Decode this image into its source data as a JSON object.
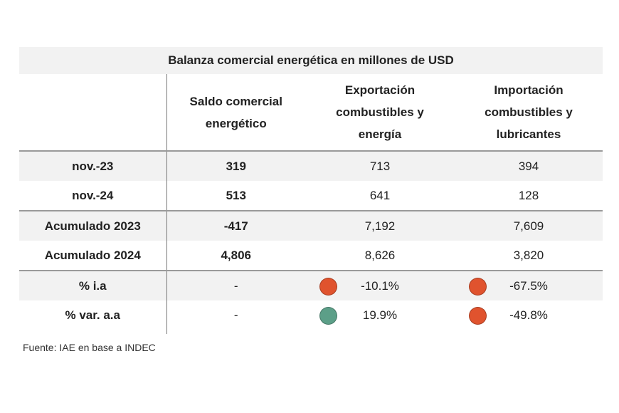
{
  "title": "Balanza comercial energética en millones de USD",
  "columns": [
    "",
    "Saldo comercial energético",
    "Exportación combustibles y energía",
    "Importación combustibles y lubricantes"
  ],
  "column_lines": [
    [],
    [
      "Saldo comercial",
      "energético"
    ],
    [
      "Exportación",
      "combustibles y",
      "energía"
    ],
    [
      "Importación",
      "combustibles y",
      "lubricantes"
    ]
  ],
  "rows": [
    {
      "label": "nov.-23",
      "saldo": "319",
      "export": "713",
      "import": "394"
    },
    {
      "label": "nov.-24",
      "saldo": "513",
      "export": "641",
      "import": "128"
    },
    {
      "label": "Acumulado 2023",
      "saldo": "-417",
      "export": "7,192",
      "import": "7,609"
    },
    {
      "label": "Acumulado 2024",
      "saldo": "4,806",
      "export": "8,626",
      "import": "3,820"
    },
    {
      "label": "% i.a",
      "saldo": "-",
      "export": "-10.1%",
      "import": "-67.5%",
      "export_indicator": "negative",
      "import_indicator": "negative"
    },
    {
      "label": "% var. a.a",
      "saldo": "-",
      "export": "19.9%",
      "import": "-49.8%",
      "export_indicator": "positive",
      "import_indicator": "negative"
    }
  ],
  "indicator_colors": {
    "negative": "#e0532e",
    "positive": "#5c9f88"
  },
  "source": "Fuente: IAE en base a INDEC"
}
